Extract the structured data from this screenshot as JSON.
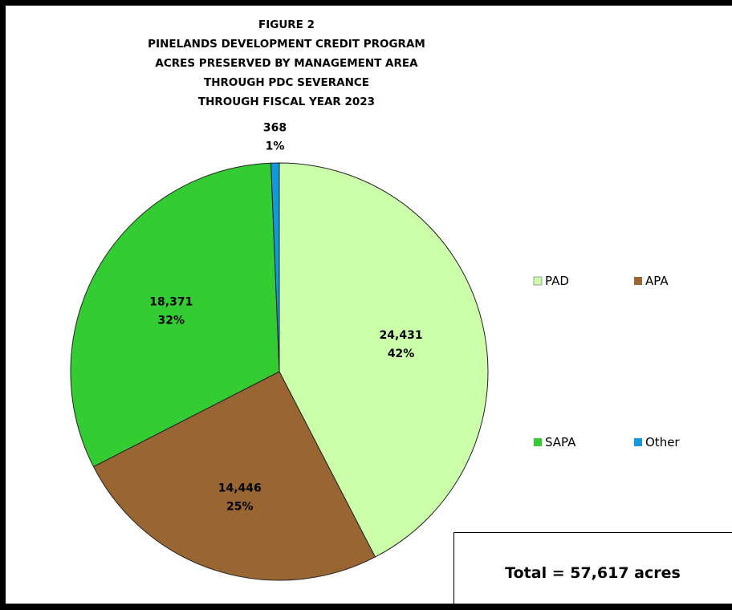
{
  "chart_data": {
    "type": "pie",
    "title_lines": [
      "FIGURE 2",
      "PINELANDS DEVELOPMENT CREDIT PROGRAM",
      "ACRES PRESERVED BY MANAGEMENT AREA",
      "THROUGH PDC SEVERANCE",
      "THROUGH FISCAL YEAR 2023"
    ],
    "slices": [
      {
        "name": "PAD",
        "value": 24431,
        "value_label": "24,431",
        "percent_label": "42%",
        "color": "#ccffaa"
      },
      {
        "name": "APA",
        "value": 14446,
        "value_label": "14,446",
        "percent_label": "25%",
        "color": "#996633"
      },
      {
        "name": "SAPA",
        "value": 18371,
        "value_label": "18,371",
        "percent_label": "32%",
        "color": "#33cc33"
      },
      {
        "name": "Other",
        "value": 368,
        "value_label": "368",
        "percent_label": "1%",
        "color": "#1199dd"
      }
    ],
    "legend": [
      "PAD",
      "APA",
      "SAPA",
      "Other"
    ],
    "legend_position": "right",
    "total_note": "Total = 57,617 acres"
  }
}
